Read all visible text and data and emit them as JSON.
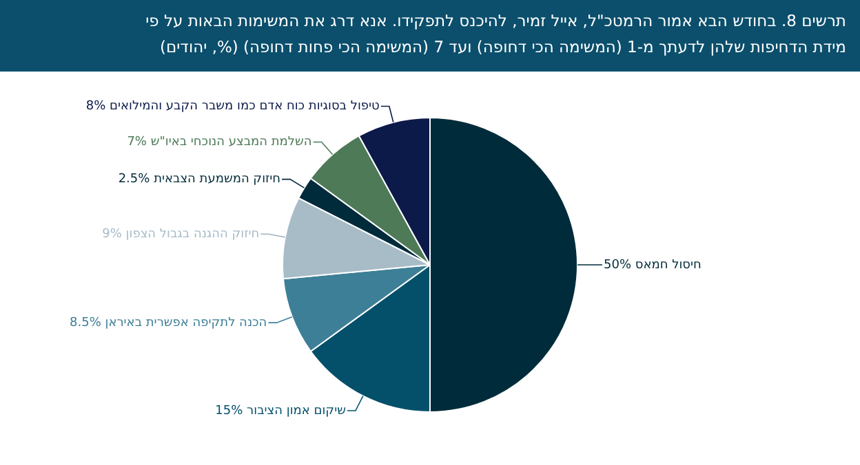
{
  "chart_data": {
    "type": "pie",
    "title": "תרשים 8. בחודש הבא אמור הרמטכ\"ל, אייל זמיר, להיכנס לתפקידו. אנא דרג את המשימות הבאות על פי מידת הדחיפות שלהן לדעתך מ-1 (המשימה הכי דחופה) ועד 7 (המשימה הכי פחות דחופה) (%, יהודים)",
    "categories": [
      "חיסול חמאס",
      "שיקום אמון הציבור",
      "הכנה לתקיפה אפשרית באיראן",
      "חיזוק ההגנה בגבול הצפון",
      "חיזוק המשמעת הצבאית",
      "השלמת המבצע הנוכחי באיו\"ש",
      "טיפול בסוגיות כוח אדם כמו משבר הקבע והמילואים"
    ],
    "values": [
      50,
      15,
      8.5,
      9,
      2.5,
      7,
      8
    ],
    "value_labels": [
      "50%",
      "15%",
      "8.5%",
      "9%",
      "2.5%",
      "7%",
      "8%"
    ],
    "colors": [
      "#002b3a",
      "#04506b",
      "#3d7f96",
      "#a8bcc8",
      "#002b3a",
      "#4e7a58",
      "#0c1a4a"
    ],
    "legend": false
  }
}
